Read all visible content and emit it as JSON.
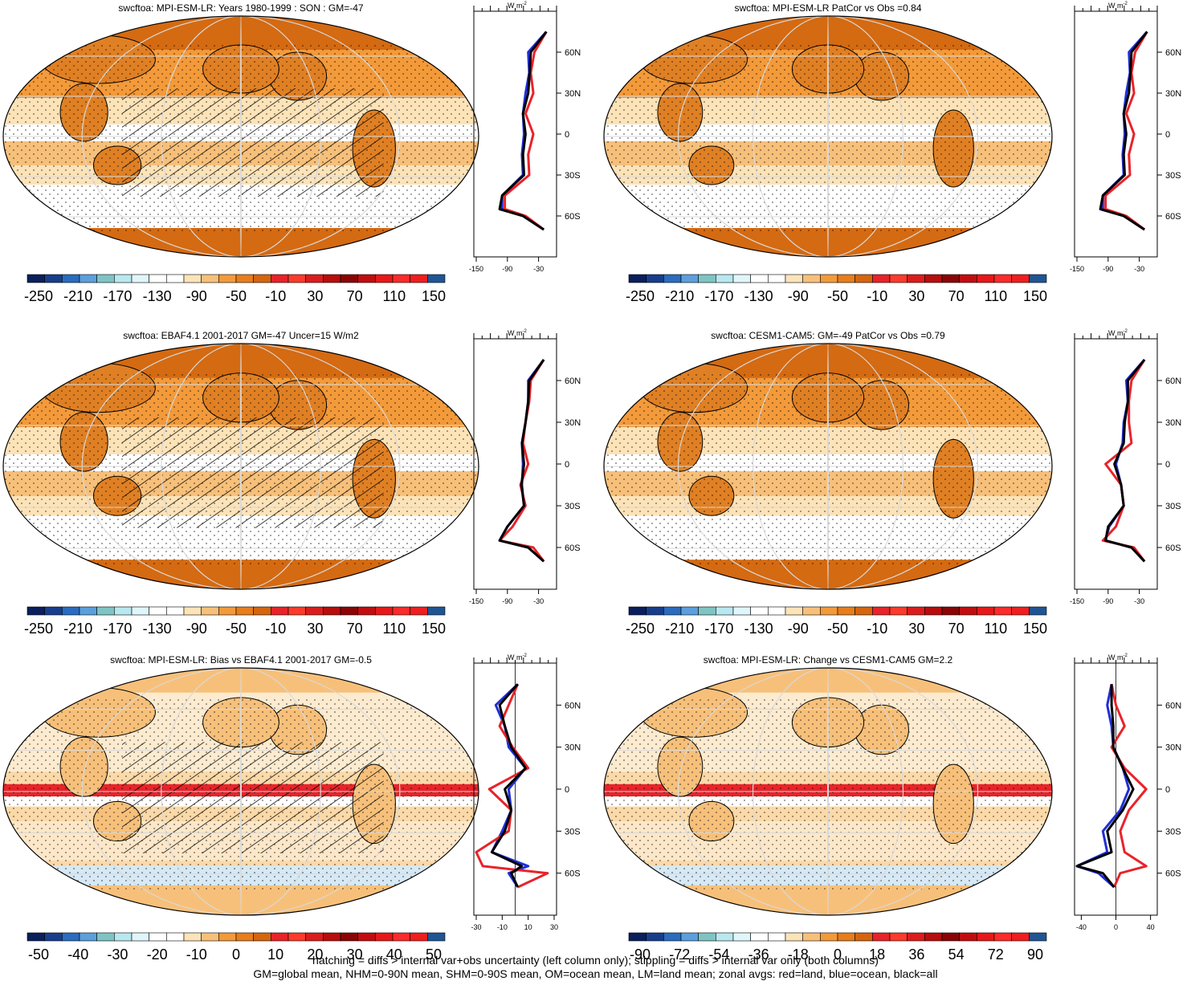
{
  "panels": [
    {
      "title": "swcftoa: MPI-ESM-LR: Years 1980-1999 : SON : GM=-47",
      "colorbar_ticks": [
        "-250",
        "-210",
        "-170",
        "-130",
        "-90",
        "-50",
        "-10",
        "30",
        "70",
        "110",
        "150"
      ],
      "zonal_ticks": [
        "-150",
        "-90",
        "-30"
      ]
    },
    {
      "title": "swcftoa: MPI-ESM-LR PatCor vs Obs =0.84",
      "colorbar_ticks": [
        "-250",
        "-210",
        "-170",
        "-130",
        "-90",
        "-50",
        "-10",
        "30",
        "70",
        "110",
        "150"
      ],
      "zonal_ticks": [
        "-150",
        "-90",
        "-30"
      ]
    },
    {
      "title": "swcftoa: EBAF4.1 2001-2017 GM=-47 Uncer=15 W/m2",
      "colorbar_ticks": [
        "-250",
        "-210",
        "-170",
        "-130",
        "-90",
        "-50",
        "-10",
        "30",
        "70",
        "110",
        "150"
      ],
      "zonal_ticks": [
        "-150",
        "-90",
        "-30"
      ]
    },
    {
      "title": "swcftoa: CESM1-CAM5: GM=-49 PatCor vs Obs =0.79",
      "colorbar_ticks": [
        "-250",
        "-210",
        "-170",
        "-130",
        "-90",
        "-50",
        "-10",
        "30",
        "70",
        "110",
        "150"
      ],
      "zonal_ticks": [
        "-150",
        "-90",
        "-30"
      ]
    },
    {
      "title": "swcftoa: MPI-ESM-LR: Bias vs EBAF4.1 2001-2017  GM=-0.5",
      "colorbar_ticks": [
        "-50",
        "-40",
        "-30",
        "-20",
        "-10",
        "0",
        "10",
        "20",
        "30",
        "40",
        "50"
      ],
      "zonal_ticks": [
        "-30",
        "-10",
        "10",
        "30"
      ]
    },
    {
      "title": "swcftoa: MPI-ESM-LR: Change vs CESM1-CAM5 GM=2.2",
      "colorbar_ticks": [
        "-90",
        "-72",
        "-54",
        "-36",
        "-18",
        "0",
        "18",
        "36",
        "54",
        "72",
        "90"
      ],
      "zonal_ticks": [
        "-40",
        "0",
        "40"
      ]
    }
  ],
  "lat_ticks": [
    "60N",
    "30N",
    "0",
    "30S",
    "60S"
  ],
  "units": "W m",
  "units_sup": "-2",
  "colors": {
    "full_scale": [
      "#0a1f5c",
      "#173e8c",
      "#2a6cbf",
      "#5b9fdc",
      "#7fc4c4",
      "#b8e8f0",
      "#e0f6fb",
      "#ffffff",
      "#ffffff",
      "#fde3b8",
      "#f7c07a",
      "#f39a3a",
      "#e87d1c",
      "#d6650f",
      "#e8232a",
      "#ff3a2a",
      "#dc1c1c",
      "#b80d0d",
      "#8a0505",
      "#c20d10",
      "#e81818",
      "#ff2a2a",
      "#f01e1e",
      "#1f5594"
    ],
    "diff_scale": [
      "#0a1f5c",
      "#173e8c",
      "#2a6cbf",
      "#5b9fdc",
      "#7fc4c4",
      "#b8e8f0",
      "#e0f6fb",
      "#ffffff",
      "#ffffff",
      "#fde3b8",
      "#f7c07a",
      "#f39a3a",
      "#e87d1c",
      "#d6650f",
      "#e8232a",
      "#ff3a2a",
      "#dc1c1c",
      "#b80d0d",
      "#8a0505",
      "#c20d10",
      "#e81818",
      "#ff2a2a",
      "#f01e1e",
      "#1f5594"
    ],
    "land": "#e8232a",
    "ocean": "#1f2fd8",
    "all": "#000000"
  },
  "chart_data": {
    "type": "heatmap",
    "layout": "3 rows x 2 columns of global maps, each with a zonal-average line plot",
    "lat": [
      75,
      60,
      45,
      30,
      15,
      0,
      -15,
      -30,
      -45,
      -55,
      -60,
      -70
    ],
    "zonal_profiles": [
      {
        "land": [
          -15,
          -38,
          -45,
          -40,
          -55,
          -40,
          -50,
          -48,
          -95,
          -95,
          -55,
          -20
        ],
        "ocean": [
          -15,
          -50,
          -48,
          -55,
          -60,
          -58,
          -62,
          -60,
          -100,
          -100,
          -60,
          -20
        ],
        "all": [
          -15,
          -45,
          -47,
          -50,
          -60,
          -55,
          -60,
          -58,
          -100,
          -105,
          -60,
          -20
        ]
      },
      {
        "land": [
          -15,
          -38,
          -45,
          -40,
          -55,
          -40,
          -50,
          -48,
          -95,
          -95,
          -55,
          -20
        ],
        "ocean": [
          -15,
          -50,
          -48,
          -55,
          -60,
          -58,
          -62,
          -60,
          -100,
          -100,
          -60,
          -20
        ],
        "all": [
          -15,
          -45,
          -47,
          -50,
          -60,
          -55,
          -60,
          -58,
          -100,
          -105,
          -60,
          -20
        ]
      },
      {
        "land": [
          -20,
          -45,
          -48,
          -55,
          -60,
          -50,
          -65,
          -55,
          -80,
          -105,
          -40,
          -20
        ],
        "ocean": [
          -20,
          -50,
          -50,
          -55,
          -62,
          -60,
          -62,
          -58,
          -90,
          -105,
          -50,
          -20
        ],
        "all": [
          -20,
          -48,
          -50,
          -55,
          -62,
          -58,
          -63,
          -58,
          -90,
          -105,
          -50,
          -20
        ]
      },
      {
        "land": [
          -20,
          -45,
          -50,
          -50,
          -45,
          -95,
          -65,
          -60,
          -75,
          -100,
          -40,
          -20
        ],
        "ocean": [
          -20,
          -55,
          -52,
          -60,
          -62,
          -75,
          -65,
          -60,
          -88,
          -95,
          -45,
          -20
        ],
        "all": [
          -20,
          -52,
          -52,
          -58,
          -60,
          -78,
          -65,
          -60,
          -90,
          -95,
          -45,
          -20
        ]
      },
      {
        "land": [
          2,
          -5,
          -12,
          -2,
          10,
          -20,
          -3,
          -5,
          -30,
          -25,
          25,
          2
        ],
        "ocean": [
          2,
          -15,
          -8,
          -5,
          8,
          -5,
          -3,
          -10,
          -18,
          10,
          -5,
          2
        ],
        "all": [
          2,
          -12,
          -8,
          -3,
          8,
          -8,
          -3,
          -8,
          -18,
          5,
          -3,
          2
        ]
      },
      {
        "land": [
          -5,
          0,
          10,
          -5,
          10,
          35,
          15,
          5,
          10,
          35,
          5,
          -2
        ],
        "ocean": [
          -5,
          -10,
          -5,
          -3,
          8,
          15,
          5,
          -15,
          -10,
          -45,
          -20,
          -2
        ],
        "all": [
          -5,
          -5,
          -3,
          -3,
          8,
          20,
          8,
          -10,
          -5,
          -45,
          -15,
          -2
        ]
      }
    ],
    "xlim": [
      [
        -150,
        0
      ],
      [
        -150,
        0
      ],
      [
        -150,
        0
      ],
      [
        -150,
        0
      ],
      [
        -30,
        30
      ],
      [
        -45,
        45
      ]
    ],
    "ylim": [
      -90,
      90
    ]
  },
  "footer": {
    "line1": "hatching = diffs > internal var+obs uncertainty (left column only); stippling = diffs > internal var only (both columns)",
    "line2": "GM=global mean, NHM=0-90N mean, SHM=0-90S mean, OM=ocean mean, LM=land mean; zonal avgs: red=land, blue=ocean, black=all"
  }
}
